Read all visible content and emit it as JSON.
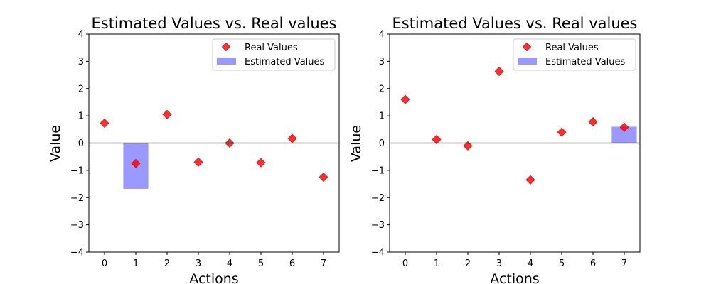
{
  "chart_data": [
    {
      "type": "bar",
      "title": "Estimated Values vs. Real values",
      "xlabel": "Actions",
      "ylabel": "Value",
      "categories": [
        "0",
        "1",
        "2",
        "3",
        "4",
        "5",
        "6",
        "7"
      ],
      "x_ticks": [
        "0",
        "1",
        "2",
        "3",
        "4",
        "5",
        "6",
        "7"
      ],
      "y_ticks": [
        "−4",
        "−3",
        "−2",
        "−1",
        "0",
        "1",
        "2",
        "3",
        "4"
      ],
      "ylim": [
        -4,
        4
      ],
      "series": [
        {
          "name": "Real Values",
          "kind": "marker",
          "color": "#ee0000",
          "values": [
            0.73,
            -0.75,
            1.05,
            -0.7,
            0.0,
            -0.72,
            0.17,
            -1.25
          ]
        },
        {
          "name": "Estimated Values",
          "kind": "bar",
          "color": "#9999ff",
          "values": [
            0,
            -1.68,
            0,
            0,
            0,
            0,
            0,
            0
          ]
        }
      ],
      "legend": {
        "position": "top-right",
        "entries": [
          "Real Values",
          "Estimated Values"
        ]
      }
    },
    {
      "type": "bar",
      "title": "Estimated Values vs. Real values",
      "xlabel": "Actions",
      "ylabel": "Value",
      "categories": [
        "0",
        "1",
        "2",
        "3",
        "4",
        "5",
        "6",
        "7"
      ],
      "x_ticks": [
        "0",
        "1",
        "2",
        "3",
        "4",
        "5",
        "6",
        "7"
      ],
      "y_ticks": [
        "−4",
        "−3",
        "−2",
        "−1",
        "0",
        "1",
        "2",
        "3",
        "4"
      ],
      "ylim": [
        -4,
        4
      ],
      "series": [
        {
          "name": "Real Values",
          "kind": "marker",
          "color": "#ee0000",
          "values": [
            1.6,
            0.13,
            -0.1,
            2.63,
            -1.35,
            0.4,
            0.78,
            0.58
          ]
        },
        {
          "name": "Estimated Values",
          "kind": "bar",
          "color": "#9999ff",
          "values": [
            0,
            0,
            0,
            0,
            0,
            0,
            0,
            0.6
          ]
        }
      ],
      "legend": {
        "position": "top-right",
        "entries": [
          "Real Values",
          "Estimated Values"
        ]
      }
    }
  ]
}
